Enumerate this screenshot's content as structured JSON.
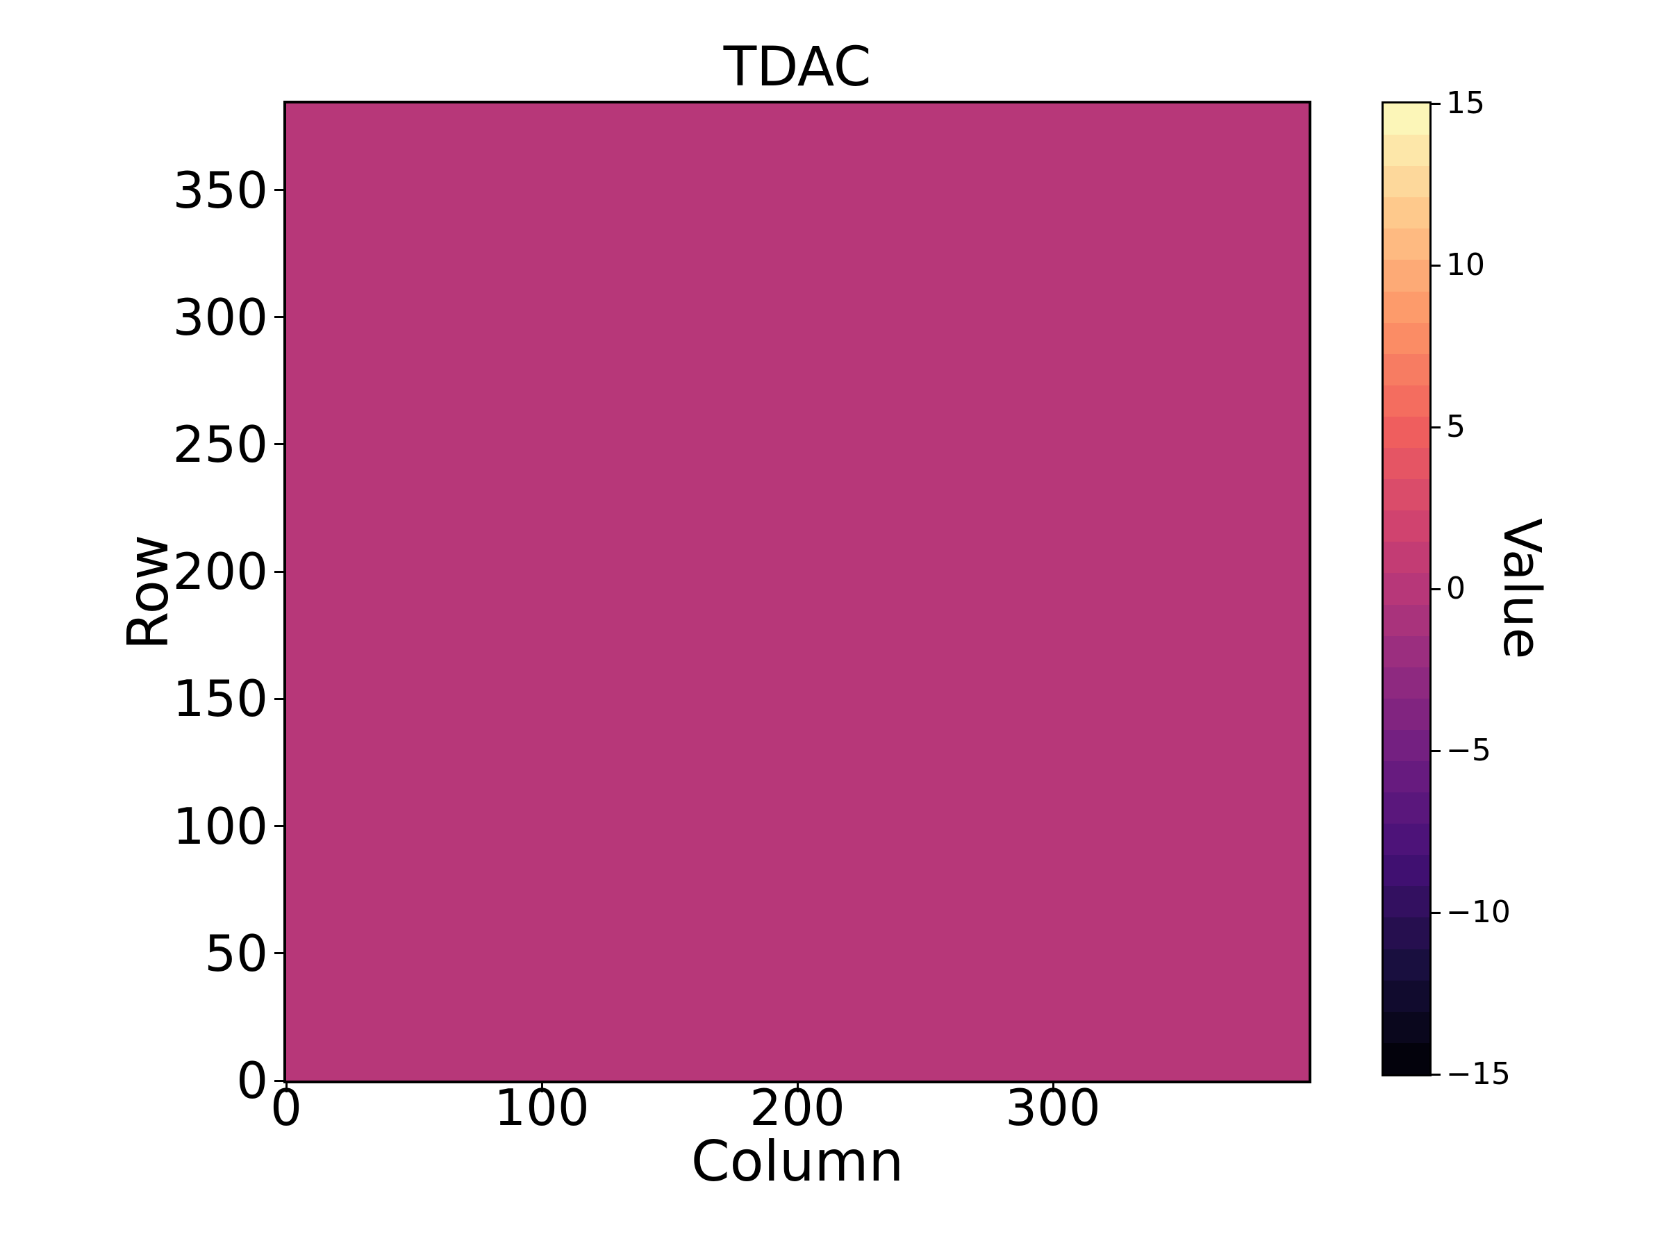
{
  "figure": {
    "background": "#ffffff"
  },
  "title": "TDAC",
  "axes": {
    "xlabel": "Column",
    "ylabel": "Row",
    "x_range": [
      0,
      400
    ],
    "y_range": [
      0,
      384
    ],
    "x_ticks": [
      {
        "value": 0,
        "label": "0"
      },
      {
        "value": 100,
        "label": "100"
      },
      {
        "value": 200,
        "label": "200"
      },
      {
        "value": 300,
        "label": "300"
      }
    ],
    "y_ticks": [
      {
        "value": 0,
        "label": "0"
      },
      {
        "value": 50,
        "label": "50"
      },
      {
        "value": 100,
        "label": "100"
      },
      {
        "value": 150,
        "label": "150"
      },
      {
        "value": 200,
        "label": "200"
      },
      {
        "value": 250,
        "label": "250"
      },
      {
        "value": 300,
        "label": "300"
      },
      {
        "value": 350,
        "label": "350"
      }
    ]
  },
  "heatmap": {
    "fill_color": "#B73779",
    "uniform_value": 0,
    "n_columns": 400,
    "n_rows": 384
  },
  "colorbar": {
    "label": "Value",
    "vmin": -15,
    "vmax": 15,
    "n_levels": 31,
    "ticks": [
      {
        "value": 15,
        "label": "15"
      },
      {
        "value": 10,
        "label": "10"
      },
      {
        "value": 5,
        "label": "5"
      },
      {
        "value": 0,
        "label": "0"
      },
      {
        "value": -5,
        "label": "−5"
      },
      {
        "value": -10,
        "label": "−10"
      },
      {
        "value": -15,
        "label": "−15"
      }
    ],
    "colors_bottom_to_top": [
      "#03020C",
      "#0A071D",
      "#110B2E",
      "#190F3F",
      "#260F4F",
      "#331060",
      "#401071",
      "#4D1379",
      "#5A177C",
      "#671B7F",
      "#742081",
      "#812480",
      "#8E2980",
      "#9B2E7F",
      "#A9337C",
      "#B73779",
      "#C33C74",
      "#D0436F",
      "#DA4C6A",
      "#E55564",
      "#EF5E5E",
      "#F46D5F",
      "#F77C62",
      "#FB8C65",
      "#FD9B6B",
      "#FDAA76",
      "#FEBA81",
      "#FEC98C",
      "#FDD89B",
      "#FDE7A9",
      "#FCF6B8"
    ]
  },
  "chart_data": {
    "type": "heatmap",
    "title": "TDAC",
    "xlabel": "Column",
    "ylabel": "Row",
    "x_range": [
      0,
      400
    ],
    "y_range": [
      0,
      384
    ],
    "x_ticks": [
      0,
      100,
      200,
      300
    ],
    "y_ticks": [
      0,
      50,
      100,
      150,
      200,
      250,
      300,
      350
    ],
    "colorbar_label": "Value",
    "colorbar_ticks": [
      15,
      10,
      5,
      0,
      -5,
      -10,
      -15
    ],
    "value_range": [
      -15,
      15
    ],
    "colormap": "magma",
    "n_color_levels": 31,
    "uniform_value": 0,
    "legend_position": "right-colorbar",
    "grid": false,
    "data_description": "Uniform 384-row x 400-column TDAC map: every cell holds the same value (~0), rendered as the magma mid-scale magenta (#B73779)."
  }
}
